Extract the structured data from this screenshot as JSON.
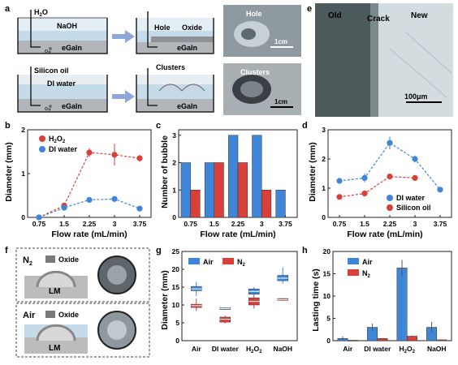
{
  "panels": {
    "a": {
      "label": "a",
      "row1": {
        "chem": "H",
        "chem_sub": "2",
        "chem_tail": "O",
        "chem2": "",
        "liquid": "NaOH",
        "metal": "eGaIn",
        "after_hole": "Hole",
        "after_oxide": "Oxide",
        "after_metal": "eGaIn",
        "photo_label": "Hole",
        "scale": "1cm"
      },
      "row2": {
        "oil": "Silicon oil",
        "liquid": "DI water",
        "metal": "eGaIn",
        "after_clusters": "Clusters",
        "after_metal": "eGaIn",
        "photo_label": "Clusters",
        "scale": "1cm"
      }
    },
    "e": {
      "label": "e",
      "old": "Old",
      "crack": "Crack",
      "new": "New",
      "scale": "100μm"
    },
    "b": {
      "label": "b",
      "ylabel": "Diameter (mm)",
      "xlabel": "Flow rate (mL/min)"
    },
    "c": {
      "label": "c",
      "ylabel": "Number of bubble",
      "xlabel": "Flow rate (mL/min)"
    },
    "d": {
      "label": "d",
      "ylabel": "Diameter (mm)",
      "xlabel": "Flow rate (mL/min)"
    },
    "f": {
      "label": "f",
      "n2": "N",
      "n2_sub": "2",
      "oxide": "Oxide",
      "lm": "LM",
      "air": "Air",
      "oxide2": "Oxide",
      "lm2": "LM"
    },
    "g": {
      "label": "g",
      "ylabel": "Diameter (mm)"
    },
    "h": {
      "label": "h",
      "ylabel": "Lasting time (s)"
    }
  },
  "colors": {
    "red": "#d9403a",
    "blue": "#3f86d8",
    "gray": "#8a8a8a",
    "photo": "#9aa3a8",
    "micro": "#cfd9dc"
  },
  "chart_data": [
    {
      "panel": "b",
      "type": "line",
      "x": [
        "0.75",
        "1.5",
        "2.25",
        "3",
        "3.75"
      ],
      "series": [
        {
          "name": "H2O2",
          "color": "#d9403a",
          "values": [
            0.0,
            0.27,
            1.48,
            1.43,
            1.35
          ],
          "errors": [
            0,
            0.04,
            0.1,
            0.25,
            0.08
          ]
        },
        {
          "name": "DI water",
          "color": "#3f86d8",
          "values": [
            0.0,
            0.22,
            0.4,
            0.42,
            0.2
          ],
          "errors": [
            0,
            0.03,
            0.04,
            0.04,
            0.03
          ]
        }
      ],
      "yticks": [
        0,
        1,
        2
      ],
      "ylim": [
        0,
        2
      ],
      "xlabel": "Flow rate (mL/min)",
      "ylabel": "Diameter (mm)"
    },
    {
      "panel": "c",
      "type": "bar",
      "categories": [
        "0.75",
        "1.5",
        "2.25",
        "3",
        "3.75"
      ],
      "series": [
        {
          "name": "blue",
          "color": "#3f86d8",
          "values": [
            2,
            2,
            3,
            3,
            1
          ]
        },
        {
          "name": "red",
          "color": "#d9403a",
          "values": [
            1,
            2,
            2,
            1,
            0
          ]
        }
      ],
      "yticks": [
        0,
        1,
        2,
        3
      ],
      "ylim": [
        0,
        3.2
      ],
      "xlabel": "Flow rate (mL/min)",
      "ylabel": "Number of bubble"
    },
    {
      "panel": "d",
      "type": "line",
      "x": [
        "0.75",
        "1.5",
        "2.25",
        "3",
        "3.75"
      ],
      "series": [
        {
          "name": "DI water",
          "color": "#3f86d8",
          "values": [
            1.25,
            1.35,
            2.55,
            2.0,
            0.95
          ],
          "errors": [
            0.08,
            0.15,
            0.22,
            0.12,
            0.07
          ]
        },
        {
          "name": "Silicon oil",
          "color": "#d9403a",
          "values": [
            0.7,
            0.82,
            1.4,
            1.35,
            0
          ],
          "errors": [
            0.06,
            0.1,
            0.08,
            0.05,
            0
          ]
        }
      ],
      "yticks": [
        0,
        1,
        2,
        3
      ],
      "ylim": [
        0,
        3
      ],
      "xlabel": "Flow rate (mL/min)",
      "ylabel": "Diameter (mm)"
    },
    {
      "panel": "g",
      "type": "box",
      "categories": [
        "Air",
        "DI water",
        "H2O2",
        "NaOH"
      ],
      "series": [
        {
          "name": "Air",
          "color": "#3f86d8",
          "median": [
            14.5,
            9.0,
            13.8,
            17.5
          ],
          "q1": [
            14.0,
            8.8,
            13.0,
            16.8
          ],
          "q3": [
            15.2,
            9.2,
            14.5,
            18.3
          ],
          "min": [
            12.5,
            8.6,
            12.5,
            16.0
          ],
          "max": [
            16.5,
            9.3,
            15.0,
            20.5
          ]
        },
        {
          "name": "N2",
          "color": "#d9403a",
          "median": [
            9.8,
            6.0,
            11.0,
            11.5
          ],
          "q1": [
            9.3,
            5.2,
            10.0,
            11.3
          ],
          "q3": [
            10.2,
            6.6,
            12.0,
            11.8
          ],
          "min": [
            8.3,
            4.8,
            9.0,
            11.2
          ],
          "max": [
            11.8,
            7.0,
            12.5,
            11.9
          ]
        }
      ],
      "yticks": [
        0,
        5,
        10,
        15,
        20,
        25
      ],
      "ylim": [
        0,
        25
      ],
      "ylabel": "Diameter (mm)"
    },
    {
      "panel": "h",
      "type": "bar",
      "categories": [
        "Air",
        "DI water",
        "H2O2",
        "NaOH"
      ],
      "series": [
        {
          "name": "Air",
          "color": "#3f86d8",
          "values": [
            0.5,
            3.0,
            16.3,
            3.0
          ],
          "errors": [
            0.5,
            0.8,
            1.8,
            1.2
          ]
        },
        {
          "name": "N2",
          "color": "#d9403a",
          "values": [
            0.1,
            0.5,
            1.0,
            0.2
          ],
          "errors": [
            0.05,
            0.1,
            0.15,
            0.05
          ]
        }
      ],
      "yticks": [
        0,
        5,
        10,
        15,
        20
      ],
      "ylim": [
        0,
        20
      ],
      "ylabel": "Lasting time (s)"
    }
  ]
}
